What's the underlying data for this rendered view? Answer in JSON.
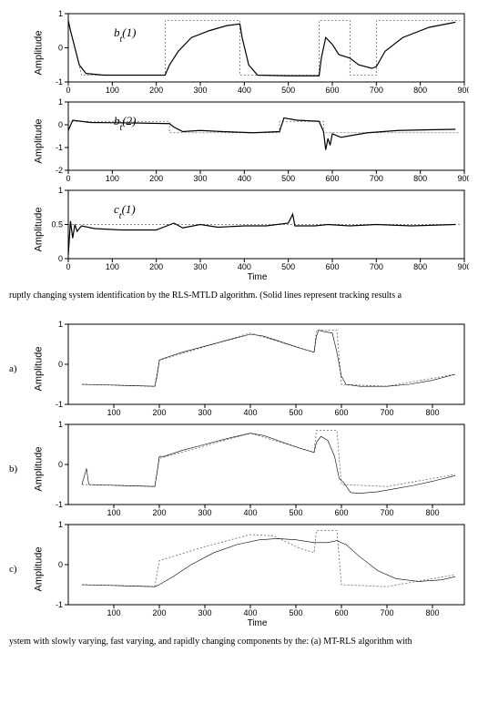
{
  "fig1": {
    "xlim": [
      0,
      900
    ],
    "xticks": [
      0,
      100,
      200,
      300,
      400,
      500,
      600,
      700,
      800,
      900
    ],
    "xlabel": "Time",
    "panels": [
      {
        "ylabel": "Amplitude",
        "annot": "b_t(1)",
        "ylim": [
          -1,
          1
        ],
        "yticks": [
          -1,
          0,
          1
        ],
        "dashed_pts": [
          [
            0,
            0.8
          ],
          [
            30,
            -0.8
          ],
          [
            220,
            -0.8
          ],
          [
            220,
            0.8
          ],
          [
            390,
            0.8
          ],
          [
            390,
            -0.8
          ],
          [
            570,
            -0.8
          ],
          [
            570,
            0.8
          ],
          [
            640,
            0.8
          ],
          [
            640,
            -0.8
          ],
          [
            700,
            -0.8
          ],
          [
            700,
            0.8
          ],
          [
            890,
            0.8
          ]
        ],
        "trace_pts": [
          [
            0,
            0.8
          ],
          [
            5,
            0.5
          ],
          [
            15,
            0.0
          ],
          [
            25,
            -0.5
          ],
          [
            40,
            -0.75
          ],
          [
            80,
            -0.8
          ],
          [
            150,
            -0.8
          ],
          [
            220,
            -0.8
          ],
          [
            230,
            -0.5
          ],
          [
            250,
            -0.1
          ],
          [
            280,
            0.3
          ],
          [
            320,
            0.5
          ],
          [
            360,
            0.65
          ],
          [
            390,
            0.7
          ],
          [
            395,
            0.3
          ],
          [
            410,
            -0.5
          ],
          [
            430,
            -0.8
          ],
          [
            500,
            -0.82
          ],
          [
            570,
            -0.82
          ],
          [
            575,
            -0.3
          ],
          [
            585,
            0.3
          ],
          [
            600,
            0.1
          ],
          [
            615,
            -0.2
          ],
          [
            640,
            -0.3
          ],
          [
            660,
            -0.5
          ],
          [
            690,
            -0.6
          ],
          [
            700,
            -0.55
          ],
          [
            720,
            -0.1
          ],
          [
            760,
            0.3
          ],
          [
            820,
            0.6
          ],
          [
            880,
            0.75
          ]
        ]
      },
      {
        "ylabel": "Amplitude",
        "annot": "b_t(2)",
        "ylim": [
          -2,
          1
        ],
        "yticks": [
          -2,
          -1,
          0,
          1
        ],
        "dashed_pts": [
          [
            0,
            0.15
          ],
          [
            230,
            0.15
          ],
          [
            230,
            -0.35
          ],
          [
            480,
            -0.35
          ],
          [
            480,
            0.15
          ],
          [
            580,
            0.15
          ],
          [
            580,
            -0.35
          ],
          [
            890,
            -0.35
          ]
        ],
        "trace_pts": [
          [
            0,
            -0.25
          ],
          [
            10,
            0.2
          ],
          [
            50,
            0.1
          ],
          [
            150,
            0.08
          ],
          [
            230,
            0.05
          ],
          [
            240,
            -0.1
          ],
          [
            260,
            -0.3
          ],
          [
            300,
            -0.25
          ],
          [
            350,
            -0.3
          ],
          [
            420,
            -0.35
          ],
          [
            480,
            -0.3
          ],
          [
            490,
            0.3
          ],
          [
            520,
            0.2
          ],
          [
            570,
            0.15
          ],
          [
            580,
            -0.3
          ],
          [
            585,
            -1.1
          ],
          [
            590,
            -0.6
          ],
          [
            595,
            -0.9
          ],
          [
            600,
            -0.4
          ],
          [
            620,
            -0.55
          ],
          [
            680,
            -0.35
          ],
          [
            750,
            -0.25
          ],
          [
            820,
            -0.22
          ],
          [
            880,
            -0.2
          ]
        ]
      },
      {
        "ylabel": "Amplitude",
        "annot": "c_t(1)",
        "ylim": [
          0,
          1
        ],
        "yticks": [
          0,
          0.5,
          1
        ],
        "dashed_pts": [
          [
            0,
            0.5
          ],
          [
            890,
            0.5
          ]
        ],
        "trace_pts": [
          [
            0,
            0.05
          ],
          [
            5,
            0.55
          ],
          [
            10,
            0.3
          ],
          [
            15,
            0.5
          ],
          [
            20,
            0.4
          ],
          [
            30,
            0.48
          ],
          [
            60,
            0.44
          ],
          [
            120,
            0.42
          ],
          [
            200,
            0.42
          ],
          [
            240,
            0.52
          ],
          [
            260,
            0.45
          ],
          [
            300,
            0.5
          ],
          [
            340,
            0.46
          ],
          [
            400,
            0.48
          ],
          [
            450,
            0.48
          ],
          [
            500,
            0.52
          ],
          [
            510,
            0.65
          ],
          [
            515,
            0.48
          ],
          [
            560,
            0.48
          ],
          [
            590,
            0.5
          ],
          [
            640,
            0.48
          ],
          [
            700,
            0.5
          ],
          [
            780,
            0.48
          ],
          [
            880,
            0.5
          ]
        ]
      }
    ]
  },
  "caption1": "ruptly changing system identification by the RLS-MTLD algorithm. (Solid lines represent tracking results a",
  "fig2": {
    "xlim": [
      0,
      870
    ],
    "xticks": [
      100,
      200,
      300,
      400,
      500,
      600,
      700,
      800
    ],
    "xlabel": "Time",
    "panels": [
      {
        "plabel": "a)",
        "ylabel": "Amplitude",
        "ylim": [
          -1,
          1
        ],
        "yticks": [
          -1,
          0,
          1
        ],
        "trace_pts": [
          [
            30,
            -0.5
          ],
          [
            100,
            -0.52
          ],
          [
            190,
            -0.55
          ],
          [
            195,
            -0.3
          ],
          [
            200,
            0.1
          ],
          [
            210,
            0.15
          ],
          [
            250,
            0.3
          ],
          [
            300,
            0.45
          ],
          [
            350,
            0.6
          ],
          [
            400,
            0.75
          ],
          [
            430,
            0.7
          ],
          [
            470,
            0.55
          ],
          [
            510,
            0.4
          ],
          [
            540,
            0.3
          ],
          [
            545,
            0.7
          ],
          [
            550,
            0.85
          ],
          [
            560,
            0.82
          ],
          [
            580,
            0.78
          ],
          [
            590,
            0.3
          ],
          [
            600,
            -0.3
          ],
          [
            610,
            -0.5
          ],
          [
            640,
            -0.55
          ],
          [
            700,
            -0.55
          ],
          [
            750,
            -0.5
          ],
          [
            800,
            -0.4
          ],
          [
            850,
            -0.25
          ]
        ],
        "dashed_pts": [
          [
            30,
            -0.5
          ],
          [
            190,
            -0.55
          ],
          [
            200,
            0.1
          ],
          [
            400,
            0.78
          ],
          [
            540,
            0.3
          ],
          [
            545,
            0.85
          ],
          [
            590,
            0.85
          ],
          [
            600,
            -0.5
          ],
          [
            700,
            -0.55
          ],
          [
            850,
            -0.25
          ]
        ]
      },
      {
        "plabel": "b)",
        "ylabel": "Amplitude",
        "ylim": [
          -1,
          1
        ],
        "yticks": [
          -1,
          0,
          1
        ],
        "trace_pts": [
          [
            30,
            -0.5
          ],
          [
            40,
            -0.1
          ],
          [
            45,
            -0.5
          ],
          [
            100,
            -0.52
          ],
          [
            190,
            -0.55
          ],
          [
            195,
            -0.2
          ],
          [
            200,
            0.2
          ],
          [
            210,
            0.2
          ],
          [
            250,
            0.35
          ],
          [
            300,
            0.5
          ],
          [
            350,
            0.65
          ],
          [
            400,
            0.78
          ],
          [
            430,
            0.72
          ],
          [
            470,
            0.56
          ],
          [
            510,
            0.4
          ],
          [
            540,
            0.3
          ],
          [
            545,
            0.55
          ],
          [
            555,
            0.7
          ],
          [
            570,
            0.6
          ],
          [
            585,
            0.2
          ],
          [
            595,
            -0.35
          ],
          [
            605,
            -0.45
          ],
          [
            620,
            -0.7
          ],
          [
            640,
            -0.72
          ],
          [
            680,
            -0.68
          ],
          [
            720,
            -0.6
          ],
          [
            760,
            -0.52
          ],
          [
            800,
            -0.42
          ],
          [
            850,
            -0.28
          ]
        ],
        "dashed_pts": [
          [
            30,
            -0.5
          ],
          [
            190,
            -0.55
          ],
          [
            200,
            0.15
          ],
          [
            400,
            0.78
          ],
          [
            540,
            0.3
          ],
          [
            545,
            0.85
          ],
          [
            590,
            0.85
          ],
          [
            600,
            -0.5
          ],
          [
            700,
            -0.55
          ],
          [
            850,
            -0.25
          ]
        ]
      },
      {
        "plabel": "c)",
        "ylabel": "Amplitude",
        "ylim": [
          -1,
          1
        ],
        "yticks": [
          -1,
          0,
          1
        ],
        "trace_pts": [
          [
            30,
            -0.5
          ],
          [
            100,
            -0.52
          ],
          [
            190,
            -0.55
          ],
          [
            200,
            -0.5
          ],
          [
            230,
            -0.3
          ],
          [
            270,
            0.0
          ],
          [
            320,
            0.3
          ],
          [
            370,
            0.5
          ],
          [
            420,
            0.62
          ],
          [
            460,
            0.65
          ],
          [
            500,
            0.62
          ],
          [
            540,
            0.55
          ],
          [
            570,
            0.55
          ],
          [
            590,
            0.6
          ],
          [
            610,
            0.5
          ],
          [
            640,
            0.2
          ],
          [
            680,
            -0.15
          ],
          [
            720,
            -0.35
          ],
          [
            770,
            -0.42
          ],
          [
            820,
            -0.38
          ],
          [
            850,
            -0.3
          ]
        ],
        "dashed_pts": [
          [
            30,
            -0.5
          ],
          [
            190,
            -0.55
          ],
          [
            200,
            0.1
          ],
          [
            300,
            0.45
          ],
          [
            400,
            0.75
          ],
          [
            450,
            0.72
          ],
          [
            510,
            0.4
          ],
          [
            540,
            0.3
          ],
          [
            545,
            0.85
          ],
          [
            590,
            0.85
          ],
          [
            600,
            -0.5
          ],
          [
            700,
            -0.55
          ],
          [
            850,
            -0.25
          ]
        ]
      }
    ]
  },
  "caption2": "ystem with slowly varying, fast varying, and rapidly changing components by the: (a) MT-RLS algorithm with",
  "colors": {
    "axis": "#000000",
    "bg": "#ffffff"
  }
}
